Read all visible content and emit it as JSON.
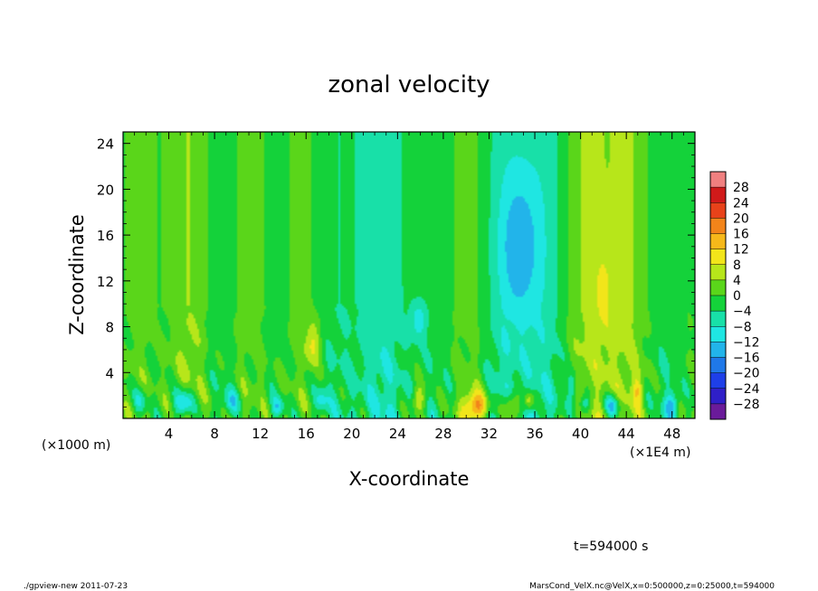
{
  "chart_data": {
    "type": "heatmap",
    "title": "zonal velocity",
    "xlabel": "X-coordinate",
    "ylabel": "Z-coordinate",
    "x_unit_label": "(×1E4 m)",
    "y_unit_label": "(×1000 m)",
    "xlim": [
      0,
      50
    ],
    "ylim": [
      0,
      25
    ],
    "x_ticks": [
      4,
      8,
      12,
      16,
      20,
      24,
      28,
      32,
      36,
      40,
      44,
      48
    ],
    "y_ticks": [
      4,
      8,
      12,
      16,
      20,
      24
    ],
    "colorbar": {
      "min": -30,
      "max": 30,
      "step": 4,
      "tick_labels": [
        "28",
        "24",
        "20",
        "16",
        "12",
        "8",
        "4",
        "0",
        "−4",
        "−8",
        "−12",
        "−16",
        "−20",
        "−24",
        "−28"
      ],
      "colors": [
        "#6a1b9a",
        "#2f1fc8",
        "#1e3fe8",
        "#1f78e8",
        "#22b4ea",
        "#1fe6e2",
        "#18e0a8",
        "#14d23a",
        "#5ad61a",
        "#b7e61a",
        "#f2e51a",
        "#f6b81a",
        "#f2841a",
        "#e8421a",
        "#d01a1a",
        "#f08080"
      ],
      "bands": [
        {
          "x0": 19.5,
          "x1": 24.5,
          "v": -4.5
        },
        {
          "x0": 25,
          "x1": 27.5,
          "v": -3
        },
        {
          "x0": 33,
          "x1": 37.5,
          "v": -6
        },
        {
          "x0": 4,
          "x1": 7,
          "v": 6.5
        },
        {
          "x0": 40,
          "x1": 45,
          "v": 6.5
        },
        {
          "x0": 10.5,
          "x1": 12.5,
          "v": 2.5
        },
        {
          "x0": 29,
          "x1": 32,
          "v": 2
        }
      ],
      "blobs": [
        {
          "x": 34.7,
          "z": 15,
          "sx": 1.2,
          "sz": 4.5,
          "v": -10
        },
        {
          "x": 25.8,
          "z": 8.5,
          "sx": 0.5,
          "sz": 1.2,
          "v": -9
        },
        {
          "x": 16.6,
          "z": 6.5,
          "sx": 0.5,
          "sz": 1.4,
          "v": 9
        },
        {
          "x": 42,
          "z": 11,
          "sx": 0.7,
          "sz": 3.5,
          "v": 5
        },
        {
          "x": 5.3,
          "z": 1.3,
          "sx": 0.6,
          "sz": 0.9,
          "v": -16
        },
        {
          "x": 30.8,
          "z": 1.0,
          "sx": 0.7,
          "sz": 0.9,
          "v": 18
        },
        {
          "x": 34,
          "z": 1.0,
          "sx": 0.5,
          "sz": 0.9,
          "v": 14
        },
        {
          "x": 35.5,
          "z": 1.5,
          "sx": 0.3,
          "sz": 0.6,
          "v": 12
        },
        {
          "x": 42.8,
          "z": 1.1,
          "sx": 0.5,
          "sz": 0.7,
          "v": -14
        },
        {
          "x": 40.3,
          "z": 1.3,
          "sx": 0.4,
          "sz": 0.7,
          "v": -12
        },
        {
          "x": 48,
          "z": 1.2,
          "sx": 0.4,
          "sz": 0.8,
          "v": -12
        },
        {
          "x": 39.3,
          "z": 2.8,
          "sx": 0.3,
          "sz": 0.9,
          "v": -10
        },
        {
          "x": 25.8,
          "z": 1.6,
          "sx": 0.4,
          "sz": 0.8,
          "v": 10
        },
        {
          "x": 1.5,
          "z": 1.5,
          "sx": 0.4,
          "sz": 0.8,
          "v": -8
        },
        {
          "x": 17.3,
          "z": 1.5,
          "sx": 0.4,
          "sz": 0.7,
          "v": -8
        },
        {
          "x": 9.5,
          "z": 1.5,
          "sx": 0.5,
          "sz": 0.8,
          "v": -8
        },
        {
          "x": 13.5,
          "z": 1.0,
          "sx": 0.4,
          "sz": 0.6,
          "v": -9
        },
        {
          "x": 45,
          "z": 2.5,
          "sx": 0.3,
          "sz": 0.8,
          "v": 9
        }
      ]
    }
  },
  "annotation": {
    "time_label": "t=594000 s"
  },
  "footer": {
    "left": "./gpview-new 2011-07-23",
    "right": "MarsCond_VelX.nc@VelX,x=0:500000,z=0:25000,t=594000"
  }
}
